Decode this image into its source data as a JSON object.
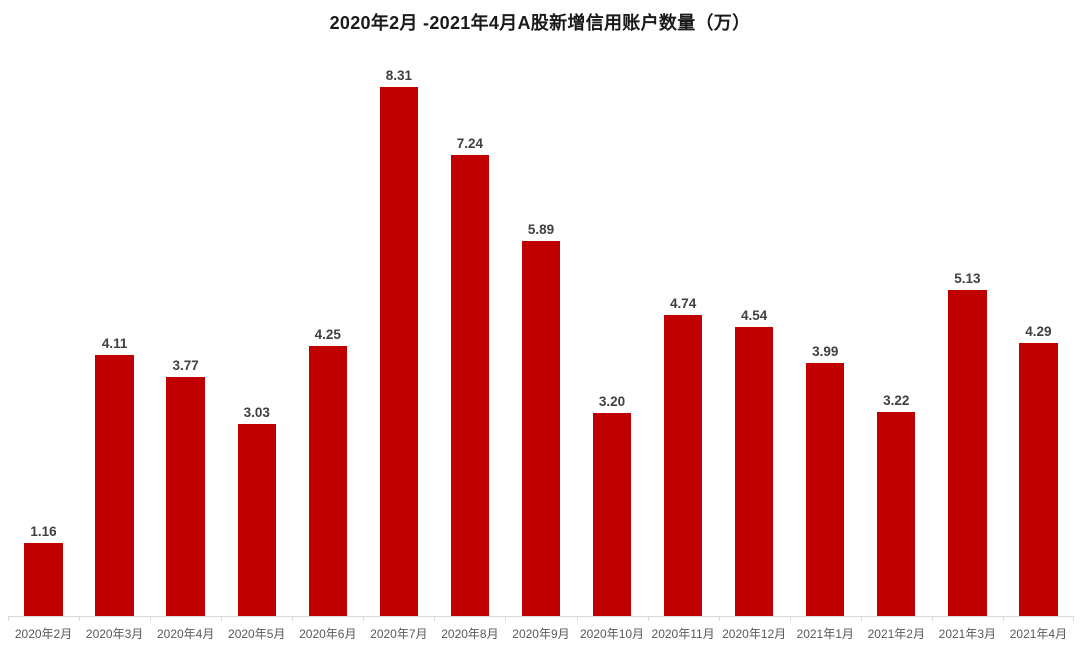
{
  "chart_data": {
    "type": "bar",
    "title": "2020年2月 -2021年4月A股新增信用账户数量（万）",
    "categories": [
      "2020年2月",
      "2020年3月",
      "2020年4月",
      "2020年5月",
      "2020年6月",
      "2020年7月",
      "2020年8月",
      "2020年9月",
      "2020年10月",
      "2020年11月",
      "2020年12月",
      "2021年1月",
      "2021年2月",
      "2021年3月",
      "2021年4月"
    ],
    "values": [
      1.16,
      4.11,
      3.77,
      3.03,
      4.25,
      8.31,
      7.24,
      5.89,
      3.2,
      4.74,
      4.54,
      3.99,
      3.22,
      5.13,
      4.29
    ],
    "value_labels": [
      "1.16",
      "4.11",
      "3.77",
      "3.03",
      "4.25",
      "8.31",
      "7.24",
      "5.89",
      "3.20",
      "4.74",
      "4.54",
      "3.99",
      "3.22",
      "5.13",
      "4.29"
    ],
    "xlabel": "",
    "ylabel": "",
    "ylim": [
      0,
      8.31
    ],
    "grid": false,
    "legend": "none",
    "data_labels_position": "above-bars",
    "colors": {
      "bar": "#C00000",
      "value_label": "#404040",
      "axis_label": "#595959",
      "axis_line": "#D9D9D9",
      "title": "#1A1A1A",
      "background": "#FFFFFF"
    }
  }
}
